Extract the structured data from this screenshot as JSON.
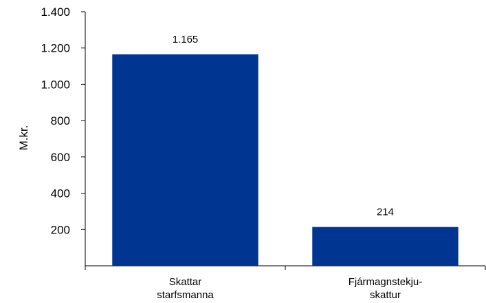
{
  "chart_data": {
    "type": "bar",
    "categories": [
      [
        "Skattar",
        "starfsmanna"
      ],
      [
        "Fjármagnstekju-",
        "skattur"
      ]
    ],
    "values": [
      1165,
      214
    ],
    "value_labels": [
      "1.165",
      "214"
    ],
    "ylabel": "M.kr.",
    "ylim": [
      0,
      1400
    ],
    "yticks": [
      200,
      400,
      600,
      800,
      1000,
      1200,
      1400
    ],
    "ytick_labels": [
      "200",
      "400",
      "600",
      "800",
      "1.000",
      "1.200",
      "1.400"
    ],
    "bar_color": "#003591",
    "grid": false,
    "legend": "none"
  }
}
